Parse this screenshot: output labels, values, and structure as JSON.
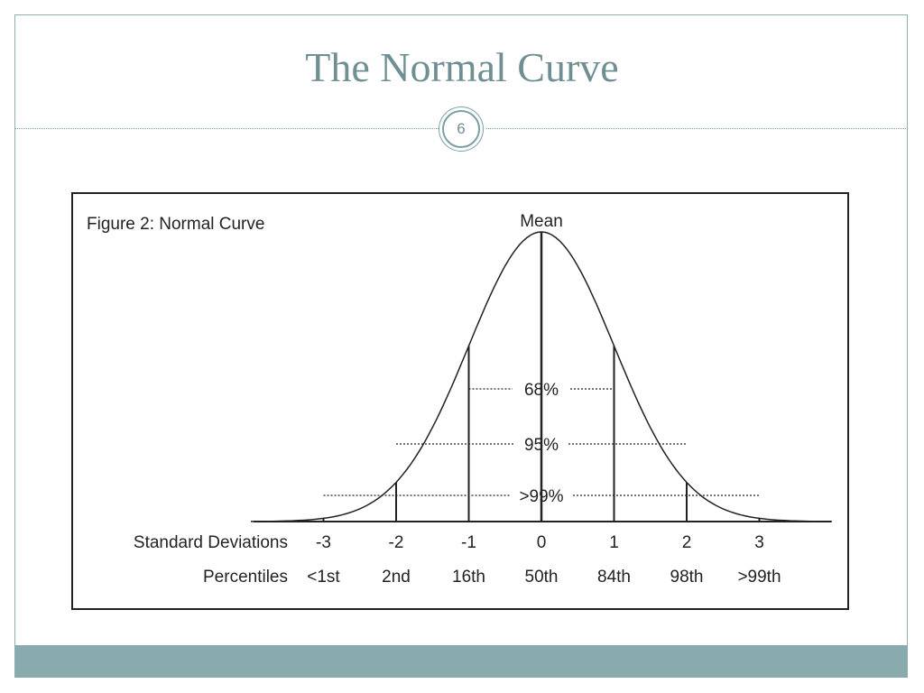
{
  "slide": {
    "title": "The Normal Curve",
    "page_number": "6"
  },
  "figure": {
    "caption": "Figure 2: Normal Curve",
    "mean_label": "Mean",
    "row_label_sd": "Standard Deviations",
    "row_label_percentiles": "Percentiles",
    "standard_deviations": [
      "-3",
      "-2",
      "-1",
      "0",
      "1",
      "2",
      "3"
    ],
    "percentiles": [
      "<1st",
      "2nd",
      "16th",
      "50th",
      "84th",
      "98th",
      ">99th"
    ],
    "intervals": [
      {
        "label": "68%",
        "from_sd": -1,
        "to_sd": 1
      },
      {
        "label": "95%",
        "from_sd": -2,
        "to_sd": 2
      },
      {
        "label": ">99%",
        "from_sd": -3,
        "to_sd": 3
      }
    ]
  },
  "colors": {
    "title": "#6f8f93",
    "accent_bar": "#8aabad",
    "ink": "#222222"
  }
}
